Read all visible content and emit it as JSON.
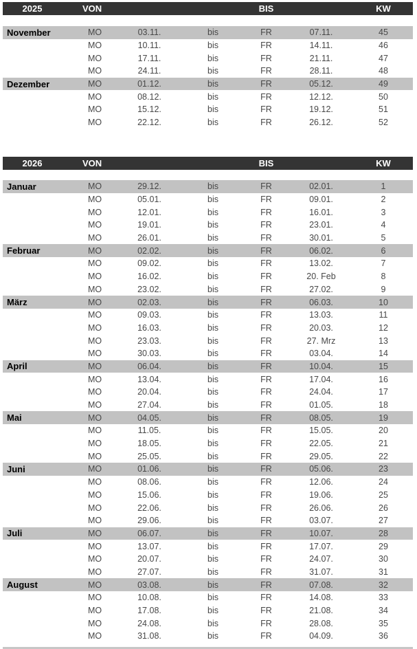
{
  "colors": {
    "header_bg": "#343434",
    "header_text": "#ffffff",
    "month_band_bg": "#c2c2c2",
    "data_text": "#474747",
    "month_text": "#000000"
  },
  "tables": [
    {
      "year": "2025",
      "header": {
        "year": "2025",
        "von": "VON",
        "bis": "BIS",
        "kw": "KW"
      },
      "rows": [
        {
          "month": "November",
          "day_from": "MO",
          "date_from": "03.11.",
          "connector": "bis",
          "day_to": "FR",
          "date_to": "07.11.",
          "kw": "45",
          "month_start": true
        },
        {
          "month": "",
          "day_from": "MO",
          "date_from": "10.11.",
          "connector": "bis",
          "day_to": "FR",
          "date_to": "14.11.",
          "kw": "46",
          "month_start": false
        },
        {
          "month": "",
          "day_from": "MO",
          "date_from": "17.11.",
          "connector": "bis",
          "day_to": "FR",
          "date_to": "21.11.",
          "kw": "47",
          "month_start": false
        },
        {
          "month": "",
          "day_from": "MO",
          "date_from": "24.11.",
          "connector": "bis",
          "day_to": "FR",
          "date_to": "28.11.",
          "kw": "48",
          "month_start": false
        },
        {
          "month": "Dezember",
          "day_from": "MO",
          "date_from": "01.12.",
          "connector": "bis",
          "day_to": "FR",
          "date_to": "05.12.",
          "kw": "49",
          "month_start": true
        },
        {
          "month": "",
          "day_from": "MO",
          "date_from": "08.12.",
          "connector": "bis",
          "day_to": "FR",
          "date_to": "12.12.",
          "kw": "50",
          "month_start": false
        },
        {
          "month": "",
          "day_from": "MO",
          "date_from": "15.12.",
          "connector": "bis",
          "day_to": "FR",
          "date_to": "19.12.",
          "kw": "51",
          "month_start": false
        },
        {
          "month": "",
          "day_from": "MO",
          "date_from": "22.12.",
          "connector": "bis",
          "day_to": "FR",
          "date_to": "26.12.",
          "kw": "52",
          "month_start": false
        }
      ]
    },
    {
      "year": "2026",
      "header": {
        "year": "2026",
        "von": "VON",
        "bis": "BIS",
        "kw": "KW"
      },
      "rows": [
        {
          "month": "Januar",
          "day_from": "MO",
          "date_from": "29.12.",
          "connector": "bis",
          "day_to": "FR",
          "date_to": "02.01.",
          "kw": "1",
          "month_start": true
        },
        {
          "month": "",
          "day_from": "MO",
          "date_from": "05.01.",
          "connector": "bis",
          "day_to": "FR",
          "date_to": "09.01.",
          "kw": "2",
          "month_start": false
        },
        {
          "month": "",
          "day_from": "MO",
          "date_from": "12.01.",
          "connector": "bis",
          "day_to": "FR",
          "date_to": "16.01.",
          "kw": "3",
          "month_start": false
        },
        {
          "month": "",
          "day_from": "MO",
          "date_from": "19.01.",
          "connector": "bis",
          "day_to": "FR",
          "date_to": "23.01.",
          "kw": "4",
          "month_start": false
        },
        {
          "month": "",
          "day_from": "MO",
          "date_from": "26.01.",
          "connector": "bis",
          "day_to": "FR",
          "date_to": "30.01.",
          "kw": "5",
          "month_start": false
        },
        {
          "month": "Februar",
          "day_from": "MO",
          "date_from": "02.02.",
          "connector": "bis",
          "day_to": "FR",
          "date_to": "06.02.",
          "kw": "6",
          "month_start": true
        },
        {
          "month": "",
          "day_from": "MO",
          "date_from": "09.02.",
          "connector": "bis",
          "day_to": "FR",
          "date_to": "13.02.",
          "kw": "7",
          "month_start": false
        },
        {
          "month": "",
          "day_from": "MO",
          "date_from": "16.02.",
          "connector": "bis",
          "day_to": "FR",
          "date_to": "20. Feb",
          "kw": "8",
          "month_start": false
        },
        {
          "month": "",
          "day_from": "MO",
          "date_from": "23.02.",
          "connector": "bis",
          "day_to": "FR",
          "date_to": "27.02.",
          "kw": "9",
          "month_start": false
        },
        {
          "month": "März",
          "day_from": "MO",
          "date_from": "02.03.",
          "connector": "bis",
          "day_to": "FR",
          "date_to": "06.03.",
          "kw": "10",
          "month_start": true
        },
        {
          "month": "",
          "day_from": "MO",
          "date_from": "09.03.",
          "connector": "bis",
          "day_to": "FR",
          "date_to": "13.03.",
          "kw": "11",
          "month_start": false
        },
        {
          "month": "",
          "day_from": "MO",
          "date_from": "16.03.",
          "connector": "bis",
          "day_to": "FR",
          "date_to": "20.03.",
          "kw": "12",
          "month_start": false
        },
        {
          "month": "",
          "day_from": "MO",
          "date_from": "23.03.",
          "connector": "bis",
          "day_to": "FR",
          "date_to": "27. Mrz",
          "kw": "13",
          "month_start": false
        },
        {
          "month": "",
          "day_from": "MO",
          "date_from": "30.03.",
          "connector": "bis",
          "day_to": "FR",
          "date_to": "03.04.",
          "kw": "14",
          "month_start": false
        },
        {
          "month": "April",
          "day_from": "MO",
          "date_from": "06.04.",
          "connector": "bis",
          "day_to": "FR",
          "date_to": "10.04.",
          "kw": "15",
          "month_start": true
        },
        {
          "month": "",
          "day_from": "MO",
          "date_from": "13.04.",
          "connector": "bis",
          "day_to": "FR",
          "date_to": "17.04.",
          "kw": "16",
          "month_start": false
        },
        {
          "month": "",
          "day_from": "MO",
          "date_from": "20.04.",
          "connector": "bis",
          "day_to": "FR",
          "date_to": "24.04.",
          "kw": "17",
          "month_start": false
        },
        {
          "month": "",
          "day_from": "MO",
          "date_from": "27.04.",
          "connector": "bis",
          "day_to": "FR",
          "date_to": "01.05.",
          "kw": "18",
          "month_start": false
        },
        {
          "month": "Mai",
          "day_from": "MO",
          "date_from": "04.05.",
          "connector": "bis",
          "day_to": "FR",
          "date_to": "08.05.",
          "kw": "19",
          "month_start": true
        },
        {
          "month": "",
          "day_from": "MO",
          "date_from": "11.05.",
          "connector": "bis",
          "day_to": "FR",
          "date_to": "15.05.",
          "kw": "20",
          "month_start": false
        },
        {
          "month": "",
          "day_from": "MO",
          "date_from": "18.05.",
          "connector": "bis",
          "day_to": "FR",
          "date_to": "22.05.",
          "kw": "21",
          "month_start": false
        },
        {
          "month": "",
          "day_from": "MO",
          "date_from": "25.05.",
          "connector": "bis",
          "day_to": "FR",
          "date_to": "29.05.",
          "kw": "22",
          "month_start": false
        },
        {
          "month": "Juni",
          "day_from": "MO",
          "date_from": "01.06.",
          "connector": "bis",
          "day_to": "FR",
          "date_to": "05.06.",
          "kw": "23",
          "month_start": true
        },
        {
          "month": "",
          "day_from": "MO",
          "date_from": "08.06.",
          "connector": "bis",
          "day_to": "FR",
          "date_to": "12.06.",
          "kw": "24",
          "month_start": false
        },
        {
          "month": "",
          "day_from": "MO",
          "date_from": "15.06.",
          "connector": "bis",
          "day_to": "FR",
          "date_to": "19.06.",
          "kw": "25",
          "month_start": false
        },
        {
          "month": "",
          "day_from": "MO",
          "date_from": "22.06.",
          "connector": "bis",
          "day_to": "FR",
          "date_to": "26.06.",
          "kw": "26",
          "month_start": false
        },
        {
          "month": "",
          "day_from": "MO",
          "date_from": "29.06.",
          "connector": "bis",
          "day_to": "FR",
          "date_to": "03.07.",
          "kw": "27",
          "month_start": false
        },
        {
          "month": "Juli",
          "day_from": "MO",
          "date_from": "06.07.",
          "connector": "bis",
          "day_to": "FR",
          "date_to": "10.07.",
          "kw": "28",
          "month_start": true
        },
        {
          "month": "",
          "day_from": "MO",
          "date_from": "13.07.",
          "connector": "bis",
          "day_to": "FR",
          "date_to": "17.07.",
          "kw": "29",
          "month_start": false
        },
        {
          "month": "",
          "day_from": "MO",
          "date_from": "20.07.",
          "connector": "bis",
          "day_to": "FR",
          "date_to": "24.07.",
          "kw": "30",
          "month_start": false
        },
        {
          "month": "",
          "day_from": "MO",
          "date_from": "27.07.",
          "connector": "bis",
          "day_to": "FR",
          "date_to": "31.07.",
          "kw": "31",
          "month_start": false
        },
        {
          "month": "August",
          "day_from": "MO",
          "date_from": "03.08.",
          "connector": "bis",
          "day_to": "FR",
          "date_to": "07.08.",
          "kw": "32",
          "month_start": true
        },
        {
          "month": "",
          "day_from": "MO",
          "date_from": "10.08.",
          "connector": "bis",
          "day_to": "FR",
          "date_to": "14.08.",
          "kw": "33",
          "month_start": false
        },
        {
          "month": "",
          "day_from": "MO",
          "date_from": "17.08.",
          "connector": "bis",
          "day_to": "FR",
          "date_to": "21.08.",
          "kw": "34",
          "month_start": false
        },
        {
          "month": "",
          "day_from": "MO",
          "date_from": "24.08.",
          "connector": "bis",
          "day_to": "FR",
          "date_to": "28.08.",
          "kw": "35",
          "month_start": false
        },
        {
          "month": "",
          "day_from": "MO",
          "date_from": "31.08.",
          "connector": "bis",
          "day_to": "FR",
          "date_to": "04.09.",
          "kw": "36",
          "month_start": false
        }
      ]
    }
  ]
}
